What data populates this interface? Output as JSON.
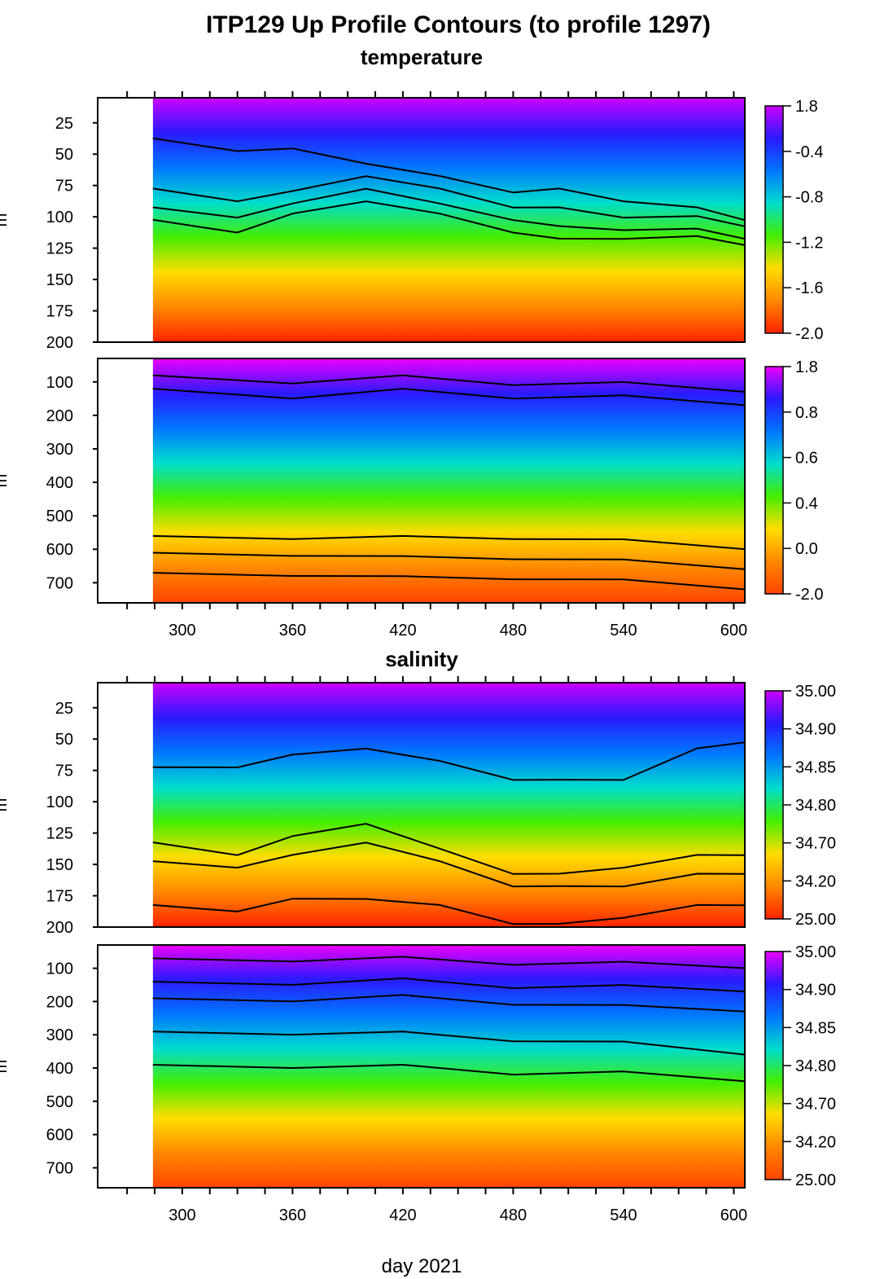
{
  "figure_title": "ITP129 Up Profile Contours (to profile 1297)",
  "x_axis_label": "day 2021",
  "chart_data": [
    {
      "type": "heatmap",
      "section": "temperature",
      "title": "temperature",
      "ylabel": "m",
      "xlim": [
        254,
        606
      ],
      "ylim": [
        5,
        200
      ],
      "data_start_day": 284,
      "x_ticks": [
        300,
        360,
        420,
        480,
        540,
        600
      ],
      "y_ticks": [
        25,
        50,
        75,
        100,
        125,
        150,
        175,
        200
      ],
      "colorbar_ticks": [
        "1.8",
        "-0.4",
        "-0.8",
        "-1.2",
        "-1.6",
        "-2.0"
      ],
      "colors": [
        "#ff2200",
        "#ff8800",
        "#ffdd00",
        "#44ee00",
        "#00ddcc",
        "#0077ff",
        "#2a1aff",
        "#cc00ff"
      ],
      "contour_depths": [
        {
          "x": [
            284,
            330,
            360,
            400,
            440,
            480,
            505,
            540,
            580,
            606
          ],
          "y": [
            40,
            45,
            48,
            55,
            70,
            78,
            80,
            85,
            95,
            100
          ]
        },
        {
          "x": [
            284,
            330,
            360,
            400,
            440,
            480,
            505,
            540,
            580,
            606
          ],
          "y": [
            80,
            85,
            82,
            65,
            80,
            90,
            95,
            98,
            102,
            105
          ]
        },
        {
          "x": [
            284,
            330,
            360,
            400,
            440,
            480,
            505,
            540,
            580,
            606
          ],
          "y": [
            95,
            98,
            92,
            75,
            92,
            100,
            110,
            108,
            112,
            115
          ]
        },
        {
          "x": [
            284,
            330,
            360,
            400,
            440,
            480,
            505,
            540,
            580,
            606
          ],
          "y": [
            105,
            110,
            100,
            85,
            100,
            110,
            120,
            115,
            118,
            120
          ]
        }
      ]
    },
    {
      "type": "heatmap",
      "section": "temperature",
      "title": "",
      "ylabel": "m",
      "xlim": [
        254,
        606
      ],
      "ylim": [
        30,
        760
      ],
      "data_start_day": 284,
      "x_ticks": [
        300,
        360,
        420,
        480,
        540,
        600
      ],
      "y_ticks": [
        100,
        200,
        300,
        400,
        500,
        600,
        700
      ],
      "colorbar_ticks": [
        "1.8",
        "0.8",
        "0.6",
        "0.4",
        "0.0",
        "-2.0"
      ],
      "colors": [
        "#ff4400",
        "#ff8800",
        "#ffdd00",
        "#44ee00",
        "#00ddcc",
        "#0077ff",
        "#2a1aff",
        "#ee00ff"
      ],
      "contour_depths": [
        {
          "x": [
            284,
            360,
            420,
            480,
            540,
            606
          ],
          "y": [
            90,
            95,
            90,
            100,
            110,
            120
          ]
        },
        {
          "x": [
            284,
            360,
            420,
            480,
            540,
            606
          ],
          "y": [
            130,
            140,
            130,
            140,
            150,
            160
          ]
        },
        {
          "x": [
            284,
            360,
            420,
            480,
            540,
            606
          ],
          "y": [
            570,
            560,
            570,
            560,
            580,
            590
          ]
        },
        {
          "x": [
            284,
            360,
            420,
            480,
            540,
            606
          ],
          "y": [
            620,
            610,
            630,
            620,
            640,
            650
          ]
        },
        {
          "x": [
            284,
            360,
            420,
            480,
            540,
            606
          ],
          "y": [
            680,
            670,
            690,
            680,
            700,
            710
          ]
        }
      ]
    },
    {
      "type": "heatmap",
      "section": "salinity",
      "title": "salinity",
      "ylabel": "m",
      "xlim": [
        254,
        606
      ],
      "ylim": [
        5,
        200
      ],
      "data_start_day": 284,
      "x_ticks": [
        300,
        360,
        420,
        480,
        540,
        600
      ],
      "y_ticks": [
        25,
        50,
        75,
        100,
        125,
        150,
        175,
        200
      ],
      "colorbar_ticks": [
        "35.00",
        "34.90",
        "34.85",
        "34.80",
        "34.70",
        "34.20",
        "25.00"
      ],
      "colors": [
        "#ff2200",
        "#ff8800",
        "#ffdd00",
        "#44ee00",
        "#00ddcc",
        "#0077ff",
        "#2a1aff",
        "#cc00ff"
      ],
      "contour_depths": [
        {
          "x": [
            284,
            330,
            360,
            400,
            440,
            480,
            505,
            540,
            580,
            606
          ],
          "y": [
            75,
            70,
            65,
            55,
            70,
            80,
            85,
            80,
            60,
            50
          ]
        },
        {
          "x": [
            284,
            330,
            360,
            400,
            440,
            480,
            505,
            540,
            580,
            606
          ],
          "y": [
            135,
            140,
            130,
            115,
            140,
            155,
            160,
            150,
            145,
            140
          ]
        },
        {
          "x": [
            284,
            330,
            360,
            400,
            440,
            480,
            505,
            540,
            580,
            606
          ],
          "y": [
            150,
            150,
            145,
            130,
            150,
            165,
            170,
            165,
            160,
            155
          ]
        },
        {
          "x": [
            284,
            330,
            360,
            400,
            440,
            480,
            505,
            540,
            580,
            606
          ],
          "y": [
            185,
            185,
            180,
            175,
            185,
            195,
            200,
            190,
            185,
            180
          ]
        }
      ]
    },
    {
      "type": "heatmap",
      "section": "salinity",
      "title": "",
      "ylabel": "m",
      "xlim": [
        254,
        606
      ],
      "ylim": [
        30,
        760
      ],
      "data_start_day": 284,
      "x_ticks": [
        300,
        360,
        420,
        480,
        540,
        600
      ],
      "y_ticks": [
        100,
        200,
        300,
        400,
        500,
        600,
        700
      ],
      "colorbar_ticks": [
        "35.00",
        "34.90",
        "34.85",
        "34.80",
        "34.70",
        "34.20",
        "25.00"
      ],
      "colors": [
        "#ff4400",
        "#ff8800",
        "#ffdd00",
        "#44ee00",
        "#00ddcc",
        "#0077ff",
        "#2a1aff",
        "#ee00ff"
      ],
      "contour_depths": [
        {
          "x": [
            284,
            360,
            420,
            480,
            540,
            606
          ],
          "y": [
            80,
            70,
            75,
            80,
            90,
            90
          ]
        },
        {
          "x": [
            284,
            360,
            420,
            480,
            540,
            606
          ],
          "y": [
            150,
            140,
            140,
            150,
            160,
            160
          ]
        },
        {
          "x": [
            284,
            360,
            420,
            480,
            540,
            606
          ],
          "y": [
            200,
            190,
            190,
            200,
            220,
            220
          ]
        },
        {
          "x": [
            284,
            360,
            420,
            480,
            540,
            606
          ],
          "y": [
            300,
            290,
            300,
            310,
            330,
            350
          ]
        },
        {
          "x": [
            284,
            360,
            420,
            480,
            540,
            606
          ],
          "y": [
            400,
            390,
            400,
            410,
            420,
            430
          ]
        }
      ]
    }
  ]
}
